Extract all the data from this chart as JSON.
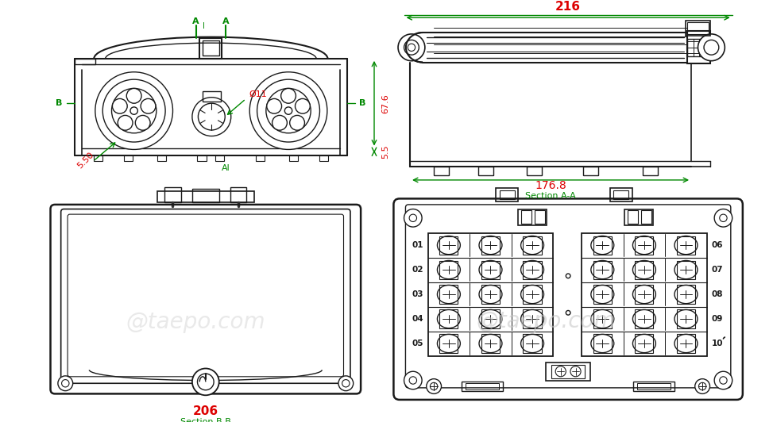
{
  "bg_color": "#ffffff",
  "line_color": "#1a1a1a",
  "dim_color_red": "#dd0000",
  "dim_color_green": "#008800",
  "watermark": "@taepo.com",
  "watermark_color": "#c8c8c8",
  "dims": {
    "top_width": "216",
    "section_aa_inner": "176.8",
    "section_bb": "206",
    "height_67_6": "67.6",
    "height_5_5": "5.5",
    "dia_11": "Ø11",
    "dia_50": "5.50",
    "section_aa_label": "Section A-A",
    "section_bb_label": "Section B-B"
  },
  "pair_labels_left": [
    "01",
    "02",
    "03",
    "04",
    "05"
  ],
  "pair_labels_right": [
    "06",
    "07",
    "08",
    "09",
    "10"
  ]
}
